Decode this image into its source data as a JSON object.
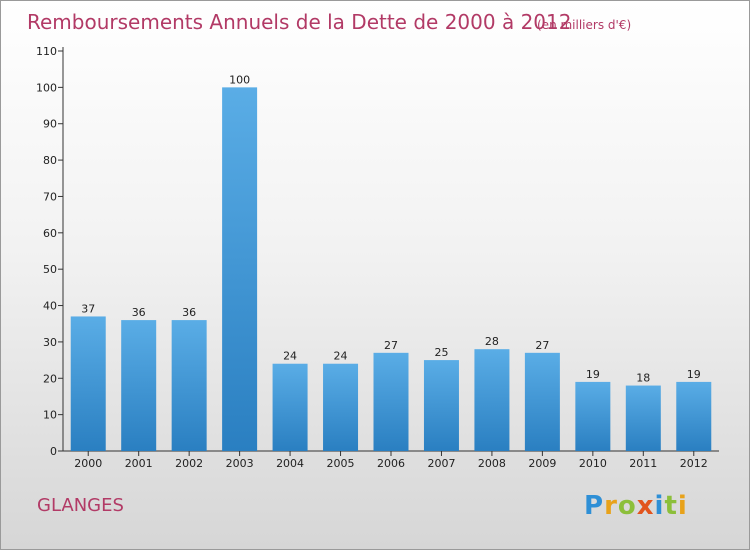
{
  "chart_data": {
    "type": "bar",
    "title": "Remboursements Annuels de la Dette de 2000 à 2012",
    "subtitle": "(en milliers d'€)",
    "categories": [
      "2000",
      "2001",
      "2002",
      "2003",
      "2004",
      "2005",
      "2006",
      "2007",
      "2008",
      "2009",
      "2010",
      "2011",
      "2012"
    ],
    "values": [
      37,
      36,
      36,
      100,
      24,
      24,
      27,
      25,
      28,
      27,
      19,
      18,
      19
    ],
    "ylim": [
      0,
      110
    ],
    "yticks": [
      0,
      10,
      20,
      30,
      40,
      50,
      60,
      70,
      80,
      90,
      100,
      110
    ],
    "xlabel": "",
    "ylabel": "",
    "grid": false,
    "bar_color": "#3a95d8"
  },
  "footer": {
    "commune": "GLANGES",
    "brand": "Proxiti",
    "brand_letters": [
      {
        "ch": "P",
        "color": "#2e8fd6"
      },
      {
        "ch": "r",
        "color": "#e8a21a"
      },
      {
        "ch": "o",
        "color": "#8cbf3a"
      },
      {
        "ch": "x",
        "color": "#e2541d"
      },
      {
        "ch": "i",
        "color": "#2e8fd6"
      },
      {
        "ch": "t",
        "color": "#8cbf3a"
      },
      {
        "ch": "i",
        "color": "#e8a21a"
      }
    ]
  },
  "colors": {
    "title": "#b23a66",
    "axis": "#333333"
  }
}
